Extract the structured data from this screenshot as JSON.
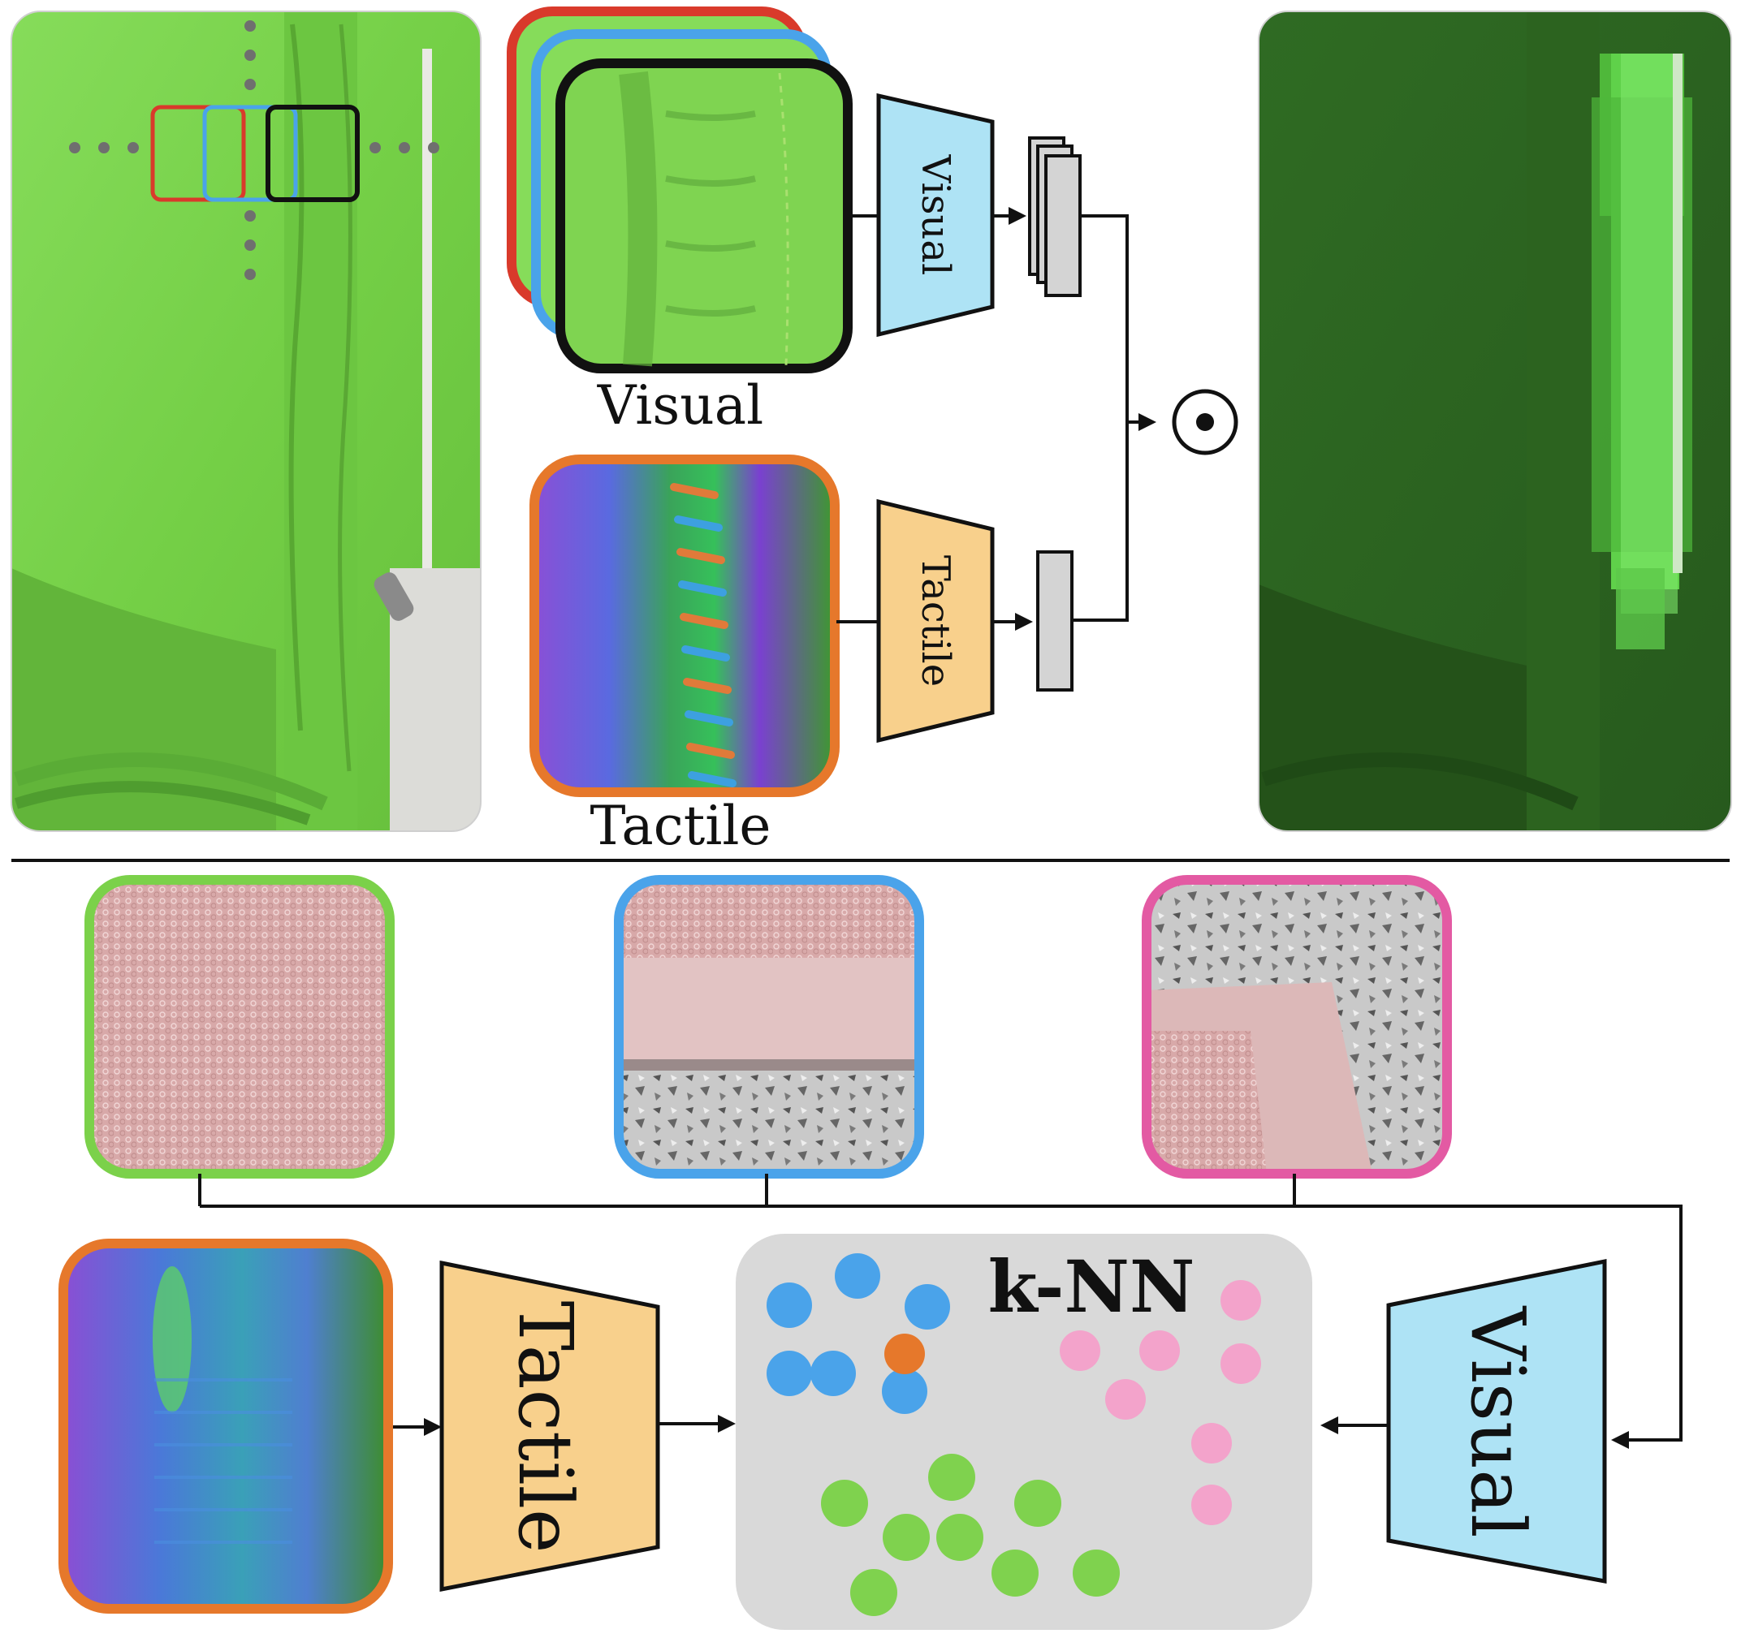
{
  "top": {
    "visual_stack_label": "Visual",
    "tactile_image_label": "Tactile",
    "visual_encoder_label": "Visual",
    "tactile_encoder_label": "Tactile",
    "product_symbol": "⊙"
  },
  "bottom": {
    "knn_label": "k-NN",
    "tactile_encoder_label": "Tactile",
    "visual_encoder_label": "Visual"
  },
  "colors": {
    "red": "#d93a2b",
    "blue": "#4aa3ea",
    "black": "#111111",
    "orange": "#e6782b",
    "green": "#7bd14a",
    "pink": "#e35aa3",
    "visual_encoder_fill": "#aee3f5",
    "tactile_encoder_fill": "#f8d08c",
    "feature_gray": "#d4d4d4",
    "knn_panel": "#d9d9d9",
    "dot_blue": "#4aa3ea",
    "dot_pink": "#f3a3cb",
    "dot_green": "#7fd24e",
    "dot_orange": "#e6782b"
  }
}
